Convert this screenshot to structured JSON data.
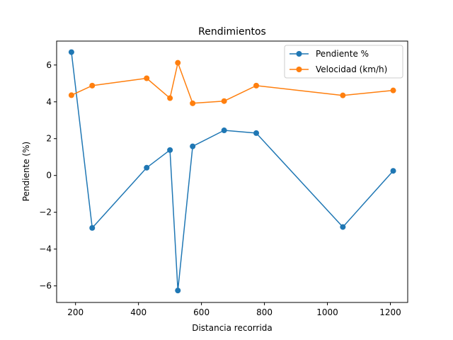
{
  "chart_data": {
    "type": "line",
    "title": "Rendimientos",
    "xlabel": "Distancia recorrida",
    "ylabel": "Pendiente (%)",
    "xlim": [
      140,
      1255
    ],
    "ylim": [
      -6.9,
      7.3
    ],
    "xticks": [
      200,
      400,
      600,
      800,
      1000,
      1200
    ],
    "yticks": [
      -6,
      -4,
      -2,
      0,
      2,
      4,
      6
    ],
    "xtick_labels": [
      "200",
      "400",
      "600",
      "800",
      "1000",
      "1200"
    ],
    "ytick_labels": [
      "−6",
      "−4",
      "−2",
      "0",
      "2",
      "4",
      "6"
    ],
    "grid": false,
    "legend_position": "top-right",
    "series": [
      {
        "name": "Pendiente %",
        "color": "#1f77b4",
        "x": [
          187,
          253,
          426,
          500,
          525,
          572,
          672,
          774,
          1049,
          1209
        ],
        "y": [
          6.7,
          -2.85,
          0.42,
          1.38,
          -6.25,
          1.58,
          2.45,
          2.3,
          -2.8,
          0.25
        ]
      },
      {
        "name": "Velocidad (km/h)",
        "color": "#ff7f0e",
        "x": [
          187,
          253,
          426,
          500,
          525,
          572,
          672,
          774,
          1049,
          1209
        ],
        "y": [
          4.36,
          4.88,
          5.28,
          4.2,
          6.12,
          3.92,
          4.04,
          4.88,
          4.35,
          4.62
        ]
      }
    ]
  }
}
